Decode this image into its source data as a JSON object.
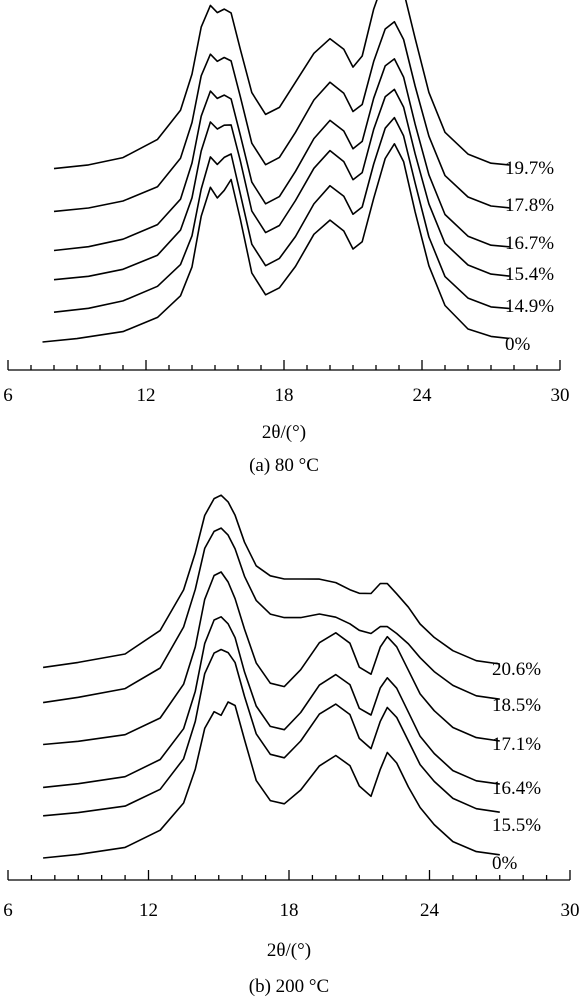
{
  "chart_data": [
    {
      "type": "line",
      "title": "(a) 80 °C",
      "xlabel": "2θ/(°)",
      "ylabel": "",
      "xlim": [
        6,
        30
      ],
      "x_ticks": [
        6,
        12,
        18,
        24,
        30
      ],
      "y_axis_visible": false,
      "curve_color": "#000000",
      "series": [
        {
          "name": "0%",
          "x": [
            7.5,
            9,
            11,
            12.5,
            13.5,
            14,
            14.4,
            14.8,
            15.1,
            15.4,
            15.7,
            16.1,
            16.6,
            17.2,
            17.8,
            18.5,
            19.3,
            20,
            20.6,
            21,
            21.4,
            21.9,
            22.4,
            22.8,
            23.2,
            23.7,
            24.3,
            25,
            26,
            27,
            27.8
          ],
          "y": [
            0,
            0.02,
            0.06,
            0.14,
            0.26,
            0.42,
            0.7,
            0.86,
            0.8,
            0.84,
            0.9,
            0.68,
            0.38,
            0.26,
            0.3,
            0.42,
            0.6,
            0.68,
            0.62,
            0.52,
            0.56,
            0.8,
            1.02,
            1.1,
            1.0,
            0.72,
            0.42,
            0.2,
            0.07,
            0.03,
            0.02
          ]
        },
        {
          "name": "14.9%",
          "x": [
            8,
            9.5,
            11,
            12.5,
            13.5,
            14,
            14.4,
            14.8,
            15.1,
            15.4,
            15.7,
            16.1,
            16.6,
            17.2,
            17.8,
            18.5,
            19.3,
            20,
            20.6,
            21,
            21.4,
            21.9,
            22.4,
            22.8,
            23.2,
            23.7,
            24.3,
            25,
            26,
            27,
            27.8
          ],
          "y": [
            0,
            0.02,
            0.06,
            0.14,
            0.26,
            0.42,
            0.68,
            0.86,
            0.82,
            0.86,
            0.88,
            0.66,
            0.38,
            0.26,
            0.3,
            0.42,
            0.6,
            0.7,
            0.64,
            0.54,
            0.58,
            0.82,
            1.02,
            1.08,
            0.98,
            0.72,
            0.42,
            0.2,
            0.08,
            0.03,
            0.02
          ]
        },
        {
          "name": "15.4%",
          "x": [
            8,
            9.5,
            11,
            12.5,
            13.5,
            14,
            14.4,
            14.8,
            15.1,
            15.4,
            15.7,
            16.1,
            16.6,
            17.2,
            17.8,
            18.5,
            19.3,
            20,
            20.6,
            21,
            21.4,
            21.9,
            22.4,
            22.8,
            23.2,
            23.7,
            24.3,
            25,
            26,
            27,
            27.8
          ],
          "y": [
            0,
            0.02,
            0.06,
            0.14,
            0.28,
            0.46,
            0.72,
            0.88,
            0.84,
            0.86,
            0.86,
            0.66,
            0.38,
            0.26,
            0.3,
            0.44,
            0.62,
            0.72,
            0.66,
            0.56,
            0.6,
            0.84,
            1.02,
            1.06,
            0.96,
            0.7,
            0.42,
            0.2,
            0.08,
            0.03,
            0.02
          ]
        },
        {
          "name": "16.7%",
          "x": [
            8,
            9.5,
            11,
            12.5,
            13.5,
            14,
            14.4,
            14.8,
            15.1,
            15.4,
            15.7,
            16.1,
            16.6,
            17.2,
            17.8,
            18.5,
            19.3,
            20,
            20.6,
            21,
            21.4,
            21.9,
            22.4,
            22.8,
            23.2,
            23.7,
            24.3,
            25,
            26,
            27,
            27.8
          ],
          "y": [
            0,
            0.02,
            0.06,
            0.14,
            0.28,
            0.48,
            0.74,
            0.88,
            0.84,
            0.86,
            0.84,
            0.64,
            0.38,
            0.26,
            0.3,
            0.44,
            0.62,
            0.72,
            0.66,
            0.56,
            0.6,
            0.84,
            1.02,
            1.06,
            0.96,
            0.7,
            0.42,
            0.2,
            0.08,
            0.03,
            0.02
          ]
        },
        {
          "name": "17.8%",
          "x": [
            8,
            9.5,
            11,
            12.5,
            13.5,
            14,
            14.4,
            14.8,
            15.1,
            15.4,
            15.7,
            16.1,
            16.6,
            17.2,
            17.8,
            18.5,
            19.3,
            20,
            20.6,
            21,
            21.4,
            21.9,
            22.4,
            22.8,
            23.2,
            23.7,
            24.3,
            25,
            26,
            27,
            27.8
          ],
          "y": [
            0,
            0.02,
            0.06,
            0.14,
            0.3,
            0.5,
            0.76,
            0.88,
            0.84,
            0.86,
            0.84,
            0.64,
            0.38,
            0.26,
            0.3,
            0.44,
            0.62,
            0.72,
            0.66,
            0.56,
            0.6,
            0.84,
            1.02,
            1.06,
            0.96,
            0.7,
            0.42,
            0.2,
            0.08,
            0.03,
            0.02
          ]
        },
        {
          "name": "19.7%",
          "x": [
            8,
            9.5,
            11,
            12.5,
            13.5,
            14,
            14.4,
            14.8,
            15.1,
            15.4,
            15.7,
            16.1,
            16.6,
            17.2,
            17.8,
            18.5,
            19.3,
            20,
            20.6,
            21,
            21.4,
            21.9,
            22.4,
            22.8,
            23.2,
            23.7,
            24.3,
            25,
            26,
            27,
            27.8
          ],
          "y": [
            0,
            0.02,
            0.06,
            0.16,
            0.32,
            0.52,
            0.78,
            0.9,
            0.86,
            0.88,
            0.86,
            0.66,
            0.42,
            0.3,
            0.34,
            0.48,
            0.64,
            0.72,
            0.66,
            0.56,
            0.62,
            0.88,
            1.06,
            1.1,
            0.98,
            0.72,
            0.42,
            0.2,
            0.08,
            0.03,
            0.02
          ]
        }
      ]
    },
    {
      "type": "line",
      "title": "(b) 200 °C",
      "xlabel": "2θ/(°)",
      "ylabel": "",
      "xlim": [
        6,
        30
      ],
      "x_ticks": [
        6,
        12,
        18,
        24,
        30
      ],
      "y_axis_visible": false,
      "curve_color": "#000000",
      "series": [
        {
          "name": "0%",
          "x": [
            7.5,
            9,
            11,
            12.5,
            13.5,
            14,
            14.4,
            14.8,
            15.1,
            15.4,
            15.7,
            16.1,
            16.6,
            17.2,
            17.8,
            18.5,
            19.3,
            20,
            20.6,
            21,
            21.5,
            21.9,
            22.2,
            22.6,
            23.1,
            23.6,
            24.2,
            25,
            26,
            27
          ],
          "y": [
            0,
            0.02,
            0.06,
            0.16,
            0.32,
            0.52,
            0.76,
            0.86,
            0.84,
            0.92,
            0.9,
            0.7,
            0.46,
            0.34,
            0.32,
            0.4,
            0.54,
            0.6,
            0.54,
            0.42,
            0.36,
            0.52,
            0.62,
            0.56,
            0.42,
            0.3,
            0.2,
            0.1,
            0.04,
            0.02
          ]
        },
        {
          "name": "15.5%",
          "x": [
            7.5,
            9,
            11,
            12.5,
            13.5,
            14,
            14.4,
            14.8,
            15.1,
            15.4,
            15.7,
            16.1,
            16.6,
            17.2,
            17.8,
            18.5,
            19.3,
            20,
            20.6,
            21,
            21.5,
            21.9,
            22.2,
            22.6,
            23.1,
            23.6,
            24.2,
            25,
            26,
            27
          ],
          "y": [
            0,
            0.02,
            0.06,
            0.16,
            0.34,
            0.56,
            0.84,
            0.96,
            0.98,
            0.96,
            0.9,
            0.7,
            0.48,
            0.36,
            0.34,
            0.44,
            0.6,
            0.66,
            0.6,
            0.46,
            0.4,
            0.56,
            0.64,
            0.58,
            0.44,
            0.3,
            0.2,
            0.1,
            0.04,
            0.02
          ]
        },
        {
          "name": "16.4%",
          "x": [
            7.5,
            9,
            11,
            12.5,
            13.5,
            14,
            14.4,
            14.8,
            15.1,
            15.4,
            15.7,
            16.1,
            16.6,
            17.2,
            17.8,
            18.5,
            19.3,
            20,
            20.6,
            21,
            21.5,
            21.9,
            22.2,
            22.6,
            23.1,
            23.6,
            24.2,
            25,
            26,
            27
          ],
          "y": [
            0,
            0.02,
            0.06,
            0.16,
            0.34,
            0.56,
            0.84,
            0.98,
            1.0,
            0.96,
            0.88,
            0.68,
            0.48,
            0.36,
            0.34,
            0.44,
            0.6,
            0.66,
            0.6,
            0.46,
            0.42,
            0.58,
            0.64,
            0.58,
            0.44,
            0.3,
            0.2,
            0.1,
            0.04,
            0.02
          ]
        },
        {
          "name": "17.1%",
          "x": [
            7.5,
            9,
            11,
            12.5,
            13.5,
            14,
            14.4,
            14.8,
            15.1,
            15.4,
            15.7,
            16.1,
            16.6,
            17.2,
            17.8,
            18.5,
            19.3,
            20,
            20.6,
            21,
            21.5,
            21.9,
            22.2,
            22.6,
            23.1,
            23.6,
            24.2,
            25,
            26,
            27
          ],
          "y": [
            0,
            0.02,
            0.06,
            0.16,
            0.36,
            0.58,
            0.86,
            1.0,
            1.02,
            0.96,
            0.86,
            0.68,
            0.48,
            0.36,
            0.34,
            0.44,
            0.6,
            0.66,
            0.6,
            0.46,
            0.42,
            0.58,
            0.64,
            0.58,
            0.44,
            0.3,
            0.2,
            0.1,
            0.04,
            0.02
          ]
        },
        {
          "name": "18.5%",
          "x": [
            7.5,
            9,
            11,
            12.5,
            13.5,
            14,
            14.4,
            14.8,
            15.1,
            15.4,
            15.7,
            16.1,
            16.6,
            17.2,
            17.8,
            18.5,
            19.3,
            20,
            20.6,
            21,
            21.5,
            21.9,
            22.2,
            22.6,
            23.1,
            23.6,
            24.2,
            25,
            26,
            27
          ],
          "y": [
            0,
            0.03,
            0.08,
            0.2,
            0.44,
            0.66,
            0.9,
            1.0,
            1.02,
            0.98,
            0.9,
            0.74,
            0.6,
            0.52,
            0.5,
            0.5,
            0.52,
            0.5,
            0.46,
            0.42,
            0.4,
            0.44,
            0.44,
            0.4,
            0.34,
            0.26,
            0.18,
            0.1,
            0.04,
            0.02
          ]
        },
        {
          "name": "20.6%",
          "x": [
            7.5,
            9,
            11,
            12.5,
            13.5,
            14,
            14.4,
            14.8,
            15.1,
            15.4,
            15.7,
            16.1,
            16.6,
            17.2,
            17.8,
            18.5,
            19.3,
            20,
            20.6,
            21,
            21.5,
            21.9,
            22.2,
            22.6,
            23.1,
            23.6,
            24.2,
            25,
            26,
            27
          ],
          "y": [
            0,
            0.03,
            0.08,
            0.22,
            0.46,
            0.68,
            0.9,
            1.0,
            1.02,
            0.98,
            0.9,
            0.74,
            0.6,
            0.54,
            0.52,
            0.52,
            0.52,
            0.5,
            0.46,
            0.44,
            0.44,
            0.5,
            0.5,
            0.44,
            0.36,
            0.26,
            0.18,
            0.1,
            0.04,
            0.02
          ]
        }
      ]
    }
  ]
}
